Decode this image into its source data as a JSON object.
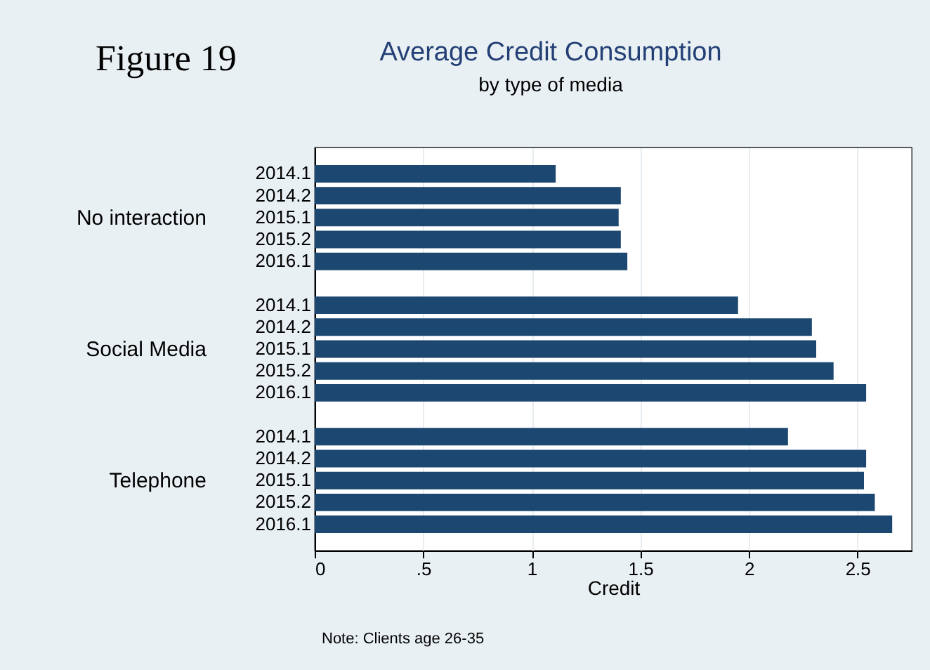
{
  "chart_data": {
    "type": "bar",
    "orientation": "horizontal",
    "title": "Average Credit Consumption",
    "subtitle": "by type of media",
    "xlabel": "Credit",
    "annotations": [
      "Figure 19",
      "Note: Clients age 26-35",
      "No interaction",
      "Social Media",
      "Telephone"
    ],
    "categories": [
      "2014.1",
      "2014.2",
      "2015.1",
      "2015.2",
      "2016.1",
      null,
      "2014.1",
      "2014.2",
      "2015.1",
      "2015.2",
      "2016.1",
      null,
      "2014.1",
      "2014.2",
      "2015.1",
      "2015.2",
      "2016.1"
    ],
    "series": [
      {
        "color": "#1c4770",
        "values": [
          1.11,
          1.41,
          1.4,
          1.41,
          1.44,
          null,
          1.95,
          2.29,
          2.31,
          2.39,
          2.54,
          null,
          2.18,
          2.54,
          2.53,
          2.58,
          2.66
        ]
      }
    ],
    "xlim": [
      0,
      2.75
    ],
    "xticks": [
      0,
      {
        "value": 0.5,
        "label": ".5"
      },
      1,
      1.5,
      2,
      2.5
    ],
    "grid": "x",
    "legend": false
  }
}
